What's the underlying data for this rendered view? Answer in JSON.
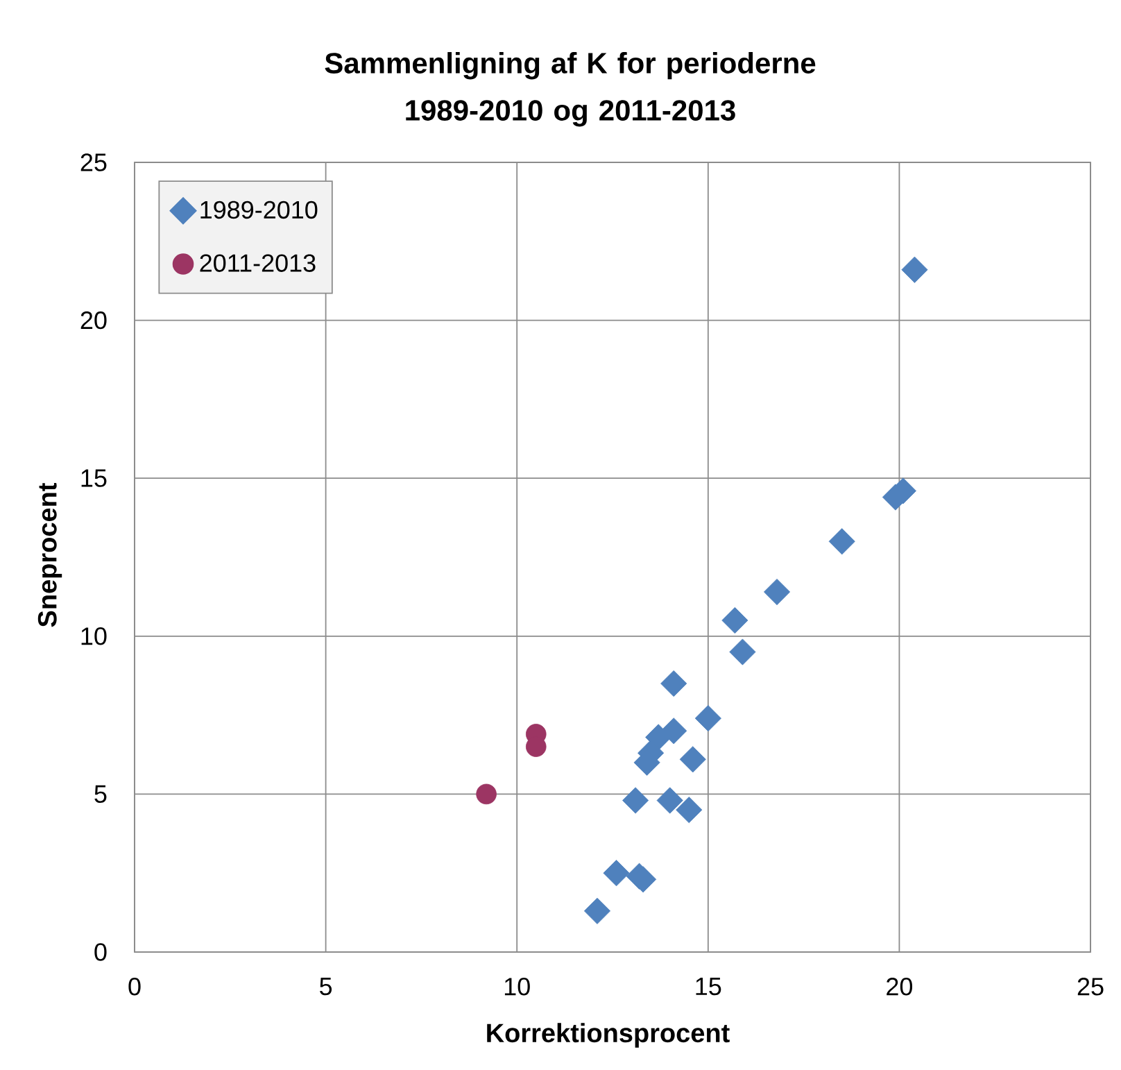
{
  "chart_data": {
    "type": "scatter",
    "title": "Sammenligning af K for perioderne 1989-2010 og 2011-2013",
    "xlabel": "Korrektionsprocent",
    "ylabel": "Sneprocent",
    "xlim": [
      0,
      25
    ],
    "xticks": [
      0,
      5,
      10,
      15,
      20,
      25
    ],
    "ylim": [
      0,
      25
    ],
    "yticks": [
      0,
      5,
      10,
      15,
      20,
      25
    ],
    "grid": true,
    "legend": "top left",
    "series": [
      {
        "name": "1989-2010",
        "color": "#4f81bd",
        "marker": "diamond",
        "x": [
          16.8,
          15.7,
          15.9,
          14.1,
          15.0,
          14.1,
          13.7,
          13.5,
          13.4,
          14.6,
          13.1,
          14.0,
          14.5,
          12.6,
          13.2,
          13.3,
          12.1,
          20.4,
          19.9,
          20.1,
          18.5
        ],
        "values": [
          11.4,
          10.5,
          9.5,
          8.5,
          7.4,
          7.0,
          6.8,
          6.3,
          6.0,
          6.1,
          4.8,
          4.8,
          4.5,
          2.5,
          2.4,
          2.3,
          1.3,
          21.6,
          14.4,
          14.6,
          13.0
        ]
      },
      {
        "name": "2011-2013",
        "color": "#9c3563",
        "marker": "circle",
        "x": [
          10.5,
          10.5,
          9.2
        ],
        "values": [
          6.9,
          6.5,
          5.0
        ]
      }
    ]
  }
}
